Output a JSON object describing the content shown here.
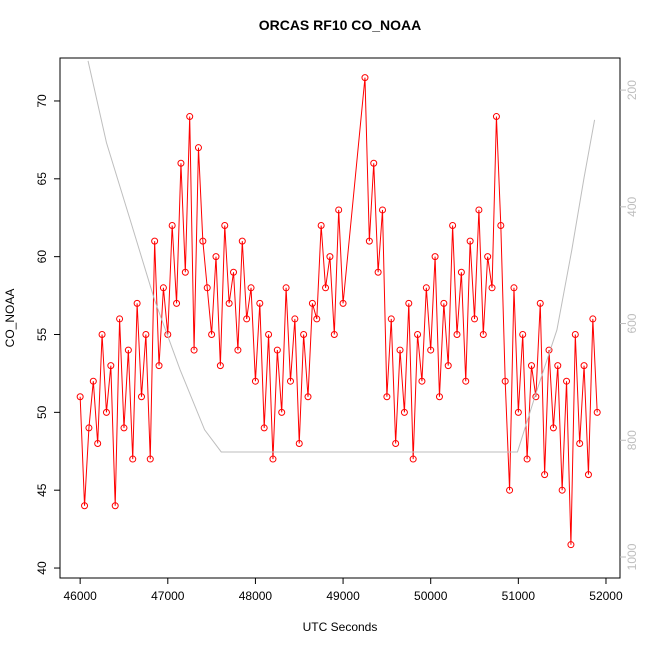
{
  "chart_data": {
    "type": "line",
    "title": "ORCAS RF10 CO_NOAA",
    "x_label": "UTC Seconds",
    "y_label": "CO_NOAA",
    "xlim": [
      45770,
      52160
    ],
    "xticks": [
      46000,
      47000,
      48000,
      49000,
      50000,
      51000,
      52000
    ],
    "ylim": [
      39.36,
      72.76
    ],
    "yticks": [
      40,
      45,
      50,
      55,
      60,
      65,
      70
    ],
    "y2lim": [
      1036,
      145
    ],
    "y2ticks": [
      200,
      400,
      600,
      800,
      1000
    ],
    "series": [
      {
        "color": "#ff0000",
        "markers": true,
        "x": [
          46000,
          46050,
          46100,
          46150,
          46200,
          46250,
          46300,
          46350,
          46400,
          46450,
          46500,
          46550,
          46600,
          46650,
          46700,
          46750,
          46800,
          46850,
          46900,
          46950,
          47000,
          47050,
          47100,
          47150,
          47200,
          47250,
          47300,
          47350,
          47400,
          47450,
          47500,
          47550,
          47600,
          47650,
          47700,
          47750,
          47800,
          47850,
          47900,
          47950,
          48000,
          48050,
          48100,
          48150,
          48200,
          48250,
          48300,
          48350,
          48400,
          48450,
          48500,
          48550,
          48600,
          48650,
          48700,
          48750,
          48800,
          48850,
          48900,
          48950,
          49000,
          49250,
          49300,
          49350,
          49400,
          49450,
          49500,
          49550,
          49600,
          49650,
          49700,
          49750,
          49800,
          49850,
          49900,
          49950,
          50000,
          50050,
          50100,
          50150,
          50200,
          50250,
          50300,
          50350,
          50400,
          50450,
          50500,
          50550,
          50600,
          50650,
          50700,
          50750,
          50800,
          50850,
          50900,
          50950,
          51000,
          51050,
          51100,
          51150,
          51200,
          51250,
          51300,
          51350,
          51400,
          51450,
          51500,
          51550,
          51600,
          51650,
          51700,
          51750,
          51800,
          51850,
          51900
        ],
        "values": [
          51,
          44,
          49,
          52,
          48,
          55,
          50,
          53,
          44,
          56,
          49,
          54,
          47,
          57,
          51,
          55,
          47,
          61,
          53,
          58,
          55,
          62,
          57,
          66,
          59,
          69,
          54,
          67,
          61,
          58,
          55,
          60,
          53,
          62,
          57,
          59,
          54,
          61,
          56,
          58,
          52,
          57,
          49,
          55,
          47,
          54,
          50,
          58,
          52,
          56,
          48,
          55,
          51,
          57,
          56,
          62,
          58,
          60,
          55,
          63,
          57,
          71.5,
          61,
          66,
          59,
          63,
          51,
          56,
          48,
          54,
          50,
          57,
          47,
          55,
          52,
          58,
          54,
          60,
          51,
          57,
          53,
          62,
          55,
          59,
          52,
          61,
          56,
          63,
          55,
          60,
          58,
          69,
          62,
          52,
          45,
          58,
          50,
          55,
          47,
          53,
          51,
          57,
          46,
          54,
          49,
          53,
          45,
          52,
          41.5,
          55,
          48,
          53,
          46,
          56,
          50
        ]
      },
      {
        "color": "#bebebe",
        "axis": "y2",
        "x": [
          46090,
          46300,
          46570,
          46850,
          47140,
          47420,
          47610,
          50990,
          51200,
          51440,
          51610,
          51750,
          51870
        ],
        "values": [
          150,
          290,
          422,
          560,
          679,
          782,
          820,
          820,
          720,
          611,
          474,
          350,
          251
        ]
      }
    ]
  }
}
